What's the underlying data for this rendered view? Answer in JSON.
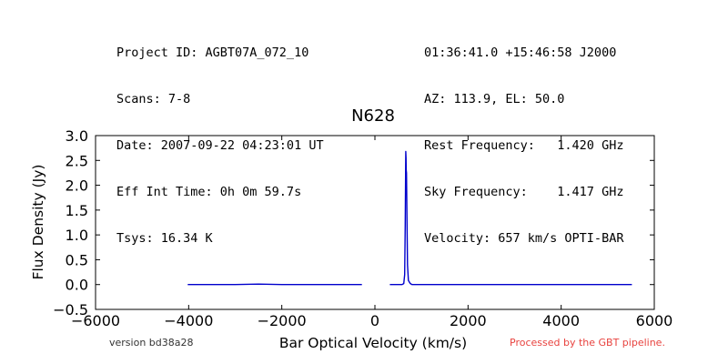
{
  "header_left": [
    "Project ID: AGBT07A_072_10",
    "Scans: 7-8",
    "Date: 2007-09-22 04:23:01 UT",
    "Eff Int Time: 0h 0m 59.7s",
    "Tsys: 16.34 K"
  ],
  "header_right": [
    "01:36:41.0 +15:46:58 J2000",
    "AZ: 113.9, EL: 50.0",
    "Rest Frequency:   1.420 GHz",
    "Sky Frequency:    1.417 GHz",
    "Velocity: 657 km/s OPTI-BAR"
  ],
  "footer": {
    "version": "version bd38a28",
    "pipeline": "Processed by the GBT pipeline.",
    "pipeline_color": "#e8433f"
  },
  "chart_data": {
    "type": "line",
    "title": "N628",
    "xlabel": "Bar Optical Velocity (km/s)",
    "ylabel": "Flux Density (Jy)",
    "xlim": [
      -6000,
      6000
    ],
    "ylim": [
      -0.5,
      3.0
    ],
    "xticks": [
      "−6000",
      "−4000",
      "−2000",
      "0",
      "2000",
      "4000",
      "6000"
    ],
    "yticks": [
      "−0.5",
      "0.0",
      "0.5",
      "1.0",
      "1.5",
      "2.0",
      "2.5",
      "3.0"
    ],
    "grid": false,
    "line_color": "#0000cc",
    "series": [
      {
        "x": [
          -4020,
          -3500,
          -3000,
          -2500,
          -2000,
          -1500,
          -1000,
          -500,
          -280
        ],
        "y": [
          0.0,
          0.0,
          0.0,
          0.01,
          0.0,
          0.0,
          0.0,
          0.0,
          0.0
        ]
      },
      {
        "x": [
          320,
          500,
          580,
          620,
          640,
          650,
          658,
          663,
          668,
          673,
          678,
          683,
          690,
          700,
          720,
          760,
          800,
          1000,
          1500,
          2000,
          2500,
          3000,
          3500,
          4000,
          4500,
          5000,
          5520
        ],
        "y": [
          0.0,
          0.0,
          0.0,
          0.02,
          0.2,
          1.2,
          2.2,
          2.68,
          2.55,
          2.3,
          2.25,
          1.9,
          1.2,
          0.4,
          0.08,
          0.02,
          0.0,
          0.0,
          0.0,
          0.0,
          0.0,
          0.0,
          0.0,
          0.0,
          0.0,
          0.0,
          0.0
        ]
      }
    ]
  }
}
